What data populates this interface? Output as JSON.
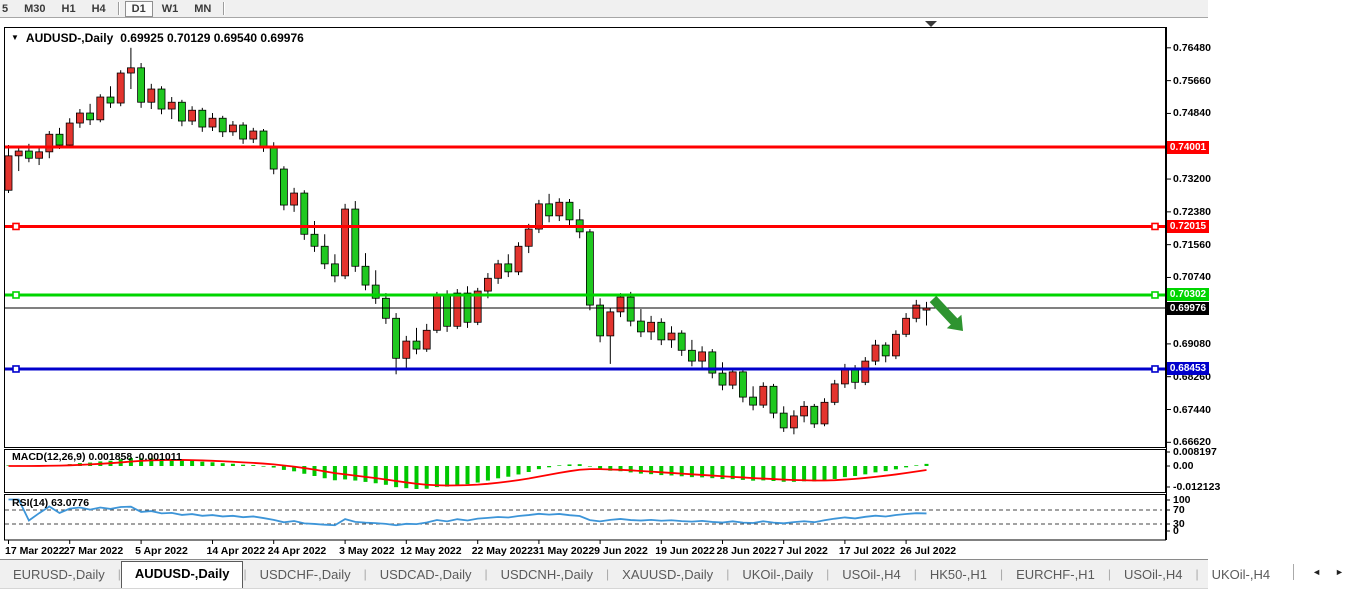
{
  "window": {
    "title_symbol": "AUDUSD-,Daily",
    "title_ohlc": "0.69925 0.70129 0.69540 0.69976"
  },
  "toolbar": {
    "timeframes": [
      "5",
      "M30",
      "H1",
      "H4",
      "D1",
      "W1",
      "MN"
    ],
    "active": "D1"
  },
  "macd": {
    "label": "MACD(12,26,9) 0.001858 -0.001011",
    "axis": [
      "0.008197",
      "0.00",
      "-0.012123"
    ]
  },
  "rsi": {
    "label": "RSI(14) 63.0776",
    "axis": [
      "100",
      "70",
      "30",
      "0"
    ]
  },
  "tabs": {
    "items": [
      "EURUSD-,Daily",
      "AUDUSD-,Daily",
      "USDCHF-,Daily",
      "USDCAD-,Daily",
      "USDCNH-,Daily",
      "XAUUSD-,Daily",
      "UKOil-,Daily",
      "USOil-,H4",
      "HK50-,H1",
      "EURCHF-,H1",
      "USOil-,H4",
      "UKOil-,H4"
    ],
    "active_index": 1,
    "scroll_left": "◄",
    "scroll_right": "►"
  },
  "chart_data": {
    "type": "candlestick",
    "symbol": "AUDUSD",
    "timeframe": "Daily",
    "last_bar": {
      "open": 0.69925,
      "high": 0.70129,
      "low": 0.6954,
      "close": 0.69976
    },
    "y_ticks": [
      0.7648,
      0.7566,
      0.7484,
      0.732,
      0.7238,
      0.7156,
      0.7074,
      0.6908,
      0.6826,
      0.6744,
      0.6662
    ],
    "x_tick_labels": [
      "17 Mar 2022",
      "27 Mar 2022",
      "5 Apr 2022",
      "14 Apr 2022",
      "24 Apr 2022",
      "3 May 2022",
      "12 May 2022",
      "22 May 2022",
      "31 May 2022",
      "9 Jun 2022",
      "19 Jun 2022",
      "28 Jun 2022",
      "7 Jul 2022",
      "17 Jul 2022",
      "26 Jul 2022"
    ],
    "x_tick_indices": [
      0,
      6,
      13,
      20,
      26,
      33,
      39,
      46,
      52,
      58,
      64,
      70,
      76,
      82,
      88
    ],
    "horizontal_lines": [
      {
        "price": 0.74001,
        "label": "0.74001",
        "color": "#ff0000",
        "width": 3,
        "handles": false
      },
      {
        "price": 0.72015,
        "label": "0.72015",
        "color": "#ff0000",
        "width": 3,
        "handles": true
      },
      {
        "price": 0.70302,
        "label": "0.70302",
        "color": "#00d500",
        "width": 3,
        "handles": true
      },
      {
        "price": 0.69976,
        "label": "0.69976",
        "color": "#000000",
        "width": 1,
        "handles": false
      },
      {
        "price": 0.68453,
        "label": "0.68453",
        "color": "#0000cc",
        "width": 3,
        "handles": true
      }
    ],
    "candle_colors": {
      "bull": "#e3342e",
      "bear": "#1fc81f",
      "wick": "#000000"
    },
    "annotation_arrow": {
      "direction": "down-right",
      "color": "#2e9430"
    },
    "indicators": {
      "macd": {
        "params": [
          12,
          26,
          9
        ],
        "value": 0.001858,
        "signal_value": -0.001011,
        "axis_max": 0.008197,
        "axis_min": -0.012123,
        "histogram_color": "#00c800",
        "signal_color": "#ff0000"
      },
      "rsi": {
        "period": 14,
        "value": 63.0776,
        "levels": [
          70,
          30
        ],
        "line_color": "#3d95d8"
      }
    },
    "candles": [
      [
        0.7292,
        0.7405,
        0.7285,
        0.7378
      ],
      [
        0.7378,
        0.74,
        0.734,
        0.739
      ],
      [
        0.739,
        0.7408,
        0.7362,
        0.7372
      ],
      [
        0.7372,
        0.7398,
        0.7355,
        0.7388
      ],
      [
        0.7388,
        0.744,
        0.7372,
        0.7432
      ],
      [
        0.7432,
        0.7448,
        0.7395,
        0.7405
      ],
      [
        0.7405,
        0.7472,
        0.7398,
        0.746
      ],
      [
        0.746,
        0.7495,
        0.7448,
        0.7485
      ],
      [
        0.7485,
        0.7508,
        0.7455,
        0.7468
      ],
      [
        0.7468,
        0.7532,
        0.7462,
        0.7525
      ],
      [
        0.7525,
        0.7552,
        0.7498,
        0.751
      ],
      [
        0.751,
        0.7592,
        0.7502,
        0.7585
      ],
      [
        0.7585,
        0.7648,
        0.7545,
        0.7598
      ],
      [
        0.7598,
        0.761,
        0.7498,
        0.7512
      ],
      [
        0.7512,
        0.7558,
        0.7495,
        0.7545
      ],
      [
        0.7545,
        0.7552,
        0.7482,
        0.7495
      ],
      [
        0.7495,
        0.7525,
        0.747,
        0.7512
      ],
      [
        0.7512,
        0.7518,
        0.7452,
        0.7465
      ],
      [
        0.7465,
        0.7502,
        0.7455,
        0.7492
      ],
      [
        0.7492,
        0.7498,
        0.7438,
        0.745
      ],
      [
        0.745,
        0.7485,
        0.744,
        0.7472
      ],
      [
        0.7472,
        0.7478,
        0.7425,
        0.7438
      ],
      [
        0.7438,
        0.7465,
        0.7428,
        0.7455
      ],
      [
        0.7455,
        0.7462,
        0.7408,
        0.742
      ],
      [
        0.742,
        0.7448,
        0.741,
        0.744
      ],
      [
        0.744,
        0.7445,
        0.7388,
        0.7398
      ],
      [
        0.7398,
        0.7412,
        0.7332,
        0.7345
      ],
      [
        0.7345,
        0.7352,
        0.7242,
        0.7255
      ],
      [
        0.7255,
        0.7298,
        0.7238,
        0.7285
      ],
      [
        0.7285,
        0.7292,
        0.7168,
        0.7182
      ],
      [
        0.7182,
        0.7215,
        0.7138,
        0.7152
      ],
      [
        0.7152,
        0.7182,
        0.7095,
        0.7108
      ],
      [
        0.7108,
        0.7132,
        0.7062,
        0.7078
      ],
      [
        0.7078,
        0.7258,
        0.707,
        0.7245
      ],
      [
        0.7245,
        0.7265,
        0.7088,
        0.7102
      ],
      [
        0.7102,
        0.7135,
        0.7042,
        0.7055
      ],
      [
        0.7055,
        0.7092,
        0.7008,
        0.7022
      ],
      [
        0.7022,
        0.7035,
        0.6958,
        0.6972
      ],
      [
        0.6972,
        0.6985,
        0.6832,
        0.6872
      ],
      [
        0.6872,
        0.6928,
        0.6845,
        0.6915
      ],
      [
        0.6915,
        0.6948,
        0.6882,
        0.6895
      ],
      [
        0.6895,
        0.6958,
        0.6888,
        0.6942
      ],
      [
        0.6942,
        0.7038,
        0.6935,
        0.7028
      ],
      [
        0.7028,
        0.7042,
        0.6938,
        0.6952
      ],
      [
        0.6952,
        0.7045,
        0.6945,
        0.7035
      ],
      [
        0.7035,
        0.7052,
        0.6948,
        0.6962
      ],
      [
        0.6962,
        0.7048,
        0.6955,
        0.704
      ],
      [
        0.704,
        0.7085,
        0.7022,
        0.7072
      ],
      [
        0.7072,
        0.7118,
        0.7058,
        0.7108
      ],
      [
        0.7108,
        0.7132,
        0.7075,
        0.7088
      ],
      [
        0.7088,
        0.7162,
        0.708,
        0.7152
      ],
      [
        0.7152,
        0.7208,
        0.7135,
        0.7195
      ],
      [
        0.7195,
        0.7268,
        0.7185,
        0.7258
      ],
      [
        0.7258,
        0.7283,
        0.7212,
        0.7228
      ],
      [
        0.7228,
        0.7272,
        0.7215,
        0.7262
      ],
      [
        0.7262,
        0.727,
        0.7205,
        0.7218
      ],
      [
        0.7218,
        0.7245,
        0.7172,
        0.7188
      ],
      [
        0.7188,
        0.7195,
        0.6992,
        0.7005
      ],
      [
        0.7005,
        0.7022,
        0.6912,
        0.6928
      ],
      [
        0.6928,
        0.6998,
        0.6858,
        0.6988
      ],
      [
        0.6988,
        0.7035,
        0.6975,
        0.7025
      ],
      [
        0.7025,
        0.7038,
        0.6952,
        0.6965
      ],
      [
        0.6965,
        0.6995,
        0.6925,
        0.6938
      ],
      [
        0.6938,
        0.6978,
        0.6918,
        0.6962
      ],
      [
        0.6962,
        0.6972,
        0.6905,
        0.6918
      ],
      [
        0.6918,
        0.6952,
        0.6898,
        0.6935
      ],
      [
        0.6935,
        0.6942,
        0.6878,
        0.6892
      ],
      [
        0.6892,
        0.6918,
        0.6852,
        0.6865
      ],
      [
        0.6865,
        0.6902,
        0.6848,
        0.6888
      ],
      [
        0.6888,
        0.6895,
        0.6822,
        0.6835
      ],
      [
        0.6835,
        0.6862,
        0.6792,
        0.6805
      ],
      [
        0.6805,
        0.6848,
        0.6795,
        0.6838
      ],
      [
        0.6838,
        0.6842,
        0.6762,
        0.6775
      ],
      [
        0.6775,
        0.6802,
        0.6742,
        0.6755
      ],
      [
        0.6755,
        0.6812,
        0.6748,
        0.6802
      ],
      [
        0.6802,
        0.6808,
        0.6722,
        0.6735
      ],
      [
        0.6735,
        0.6752,
        0.6688,
        0.6698
      ],
      [
        0.6698,
        0.6742,
        0.6682,
        0.6728
      ],
      [
        0.6728,
        0.6765,
        0.6712,
        0.6752
      ],
      [
        0.6752,
        0.6758,
        0.6698,
        0.6708
      ],
      [
        0.6708,
        0.6772,
        0.6702,
        0.6762
      ],
      [
        0.6762,
        0.6818,
        0.6755,
        0.6808
      ],
      [
        0.6808,
        0.6858,
        0.6798,
        0.6848
      ],
      [
        0.6848,
        0.6855,
        0.6795,
        0.6812
      ],
      [
        0.6812,
        0.6875,
        0.6805,
        0.6865
      ],
      [
        0.6865,
        0.6918,
        0.6855,
        0.6905
      ],
      [
        0.6905,
        0.6912,
        0.6862,
        0.6878
      ],
      [
        0.6878,
        0.6942,
        0.687,
        0.6932
      ],
      [
        0.6932,
        0.6985,
        0.6925,
        0.6972
      ],
      [
        0.6972,
        0.7018,
        0.6962,
        0.7005
      ],
      [
        0.69925,
        0.70129,
        0.6954,
        0.69976
      ]
    ]
  }
}
